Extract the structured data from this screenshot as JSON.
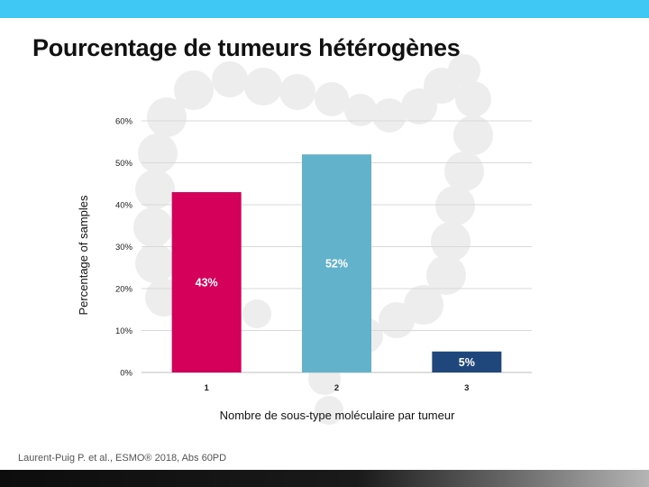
{
  "slide": {
    "title": "Pourcentage de tumeurs hétérogènes",
    "citation": "Laurent-Puig P. et al., ESMO® 2018, Abs 60PD"
  },
  "chart_data": {
    "type": "bar",
    "categories": [
      "1",
      "2",
      "3"
    ],
    "values": [
      43,
      52,
      5
    ],
    "data_labels": [
      "43%",
      "52%",
      "5%"
    ],
    "colors": [
      "#d4005a",
      "#63b2cc",
      "#1f477c"
    ],
    "xlabel": "Nombre de sous-type moléculaire par tumeur",
    "ylabel": "Percentage of samples",
    "ylim": [
      0,
      60
    ],
    "yticks": [
      0,
      10,
      20,
      30,
      40,
      50,
      60
    ],
    "ytick_labels": [
      "0%",
      "10%",
      "20%",
      "30%",
      "40%",
      "50%",
      "60%"
    ],
    "grid": true
  },
  "colors": {
    "top_bar": "#3fc8f4",
    "gridline": "#d9d9d9",
    "background_watermark": "#ececec"
  }
}
